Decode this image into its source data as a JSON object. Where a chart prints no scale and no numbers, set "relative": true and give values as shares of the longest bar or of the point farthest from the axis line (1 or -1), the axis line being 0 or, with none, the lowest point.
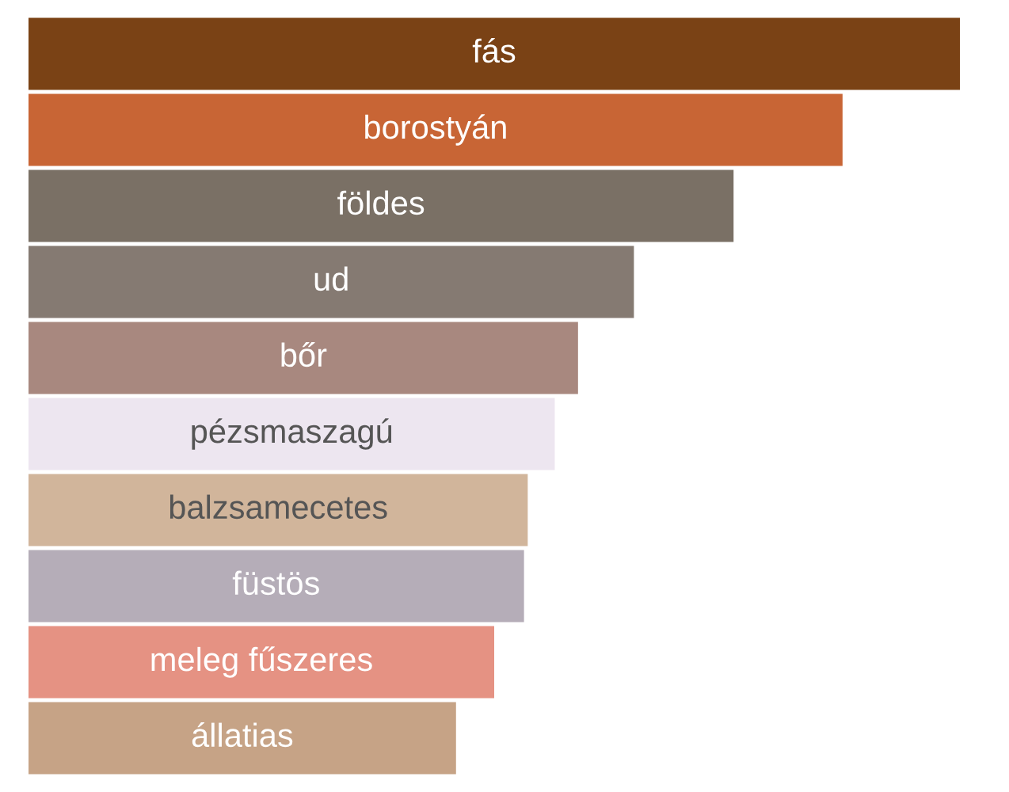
{
  "chart_data": {
    "type": "bar",
    "orientation": "horizontal",
    "relative": true,
    "categories": [
      "fás",
      "borostyán",
      "földes",
      "ud",
      "bőr",
      "pézsmaszagú",
      "balzsamecetes",
      "füstös",
      "meleg fűszeres",
      "állatias"
    ],
    "values": [
      1,
      0.874,
      0.757,
      0.65,
      0.59,
      0.565,
      0.536,
      0.532,
      0.5,
      0.459
    ],
    "colors": [
      "#7a4215",
      "#c86535",
      "#7a7065",
      "#857a72",
      "#a8887f",
      "#ede6f0",
      "#d1b59b",
      "#b5adb8",
      "#e59283",
      "#c6a386"
    ]
  }
}
